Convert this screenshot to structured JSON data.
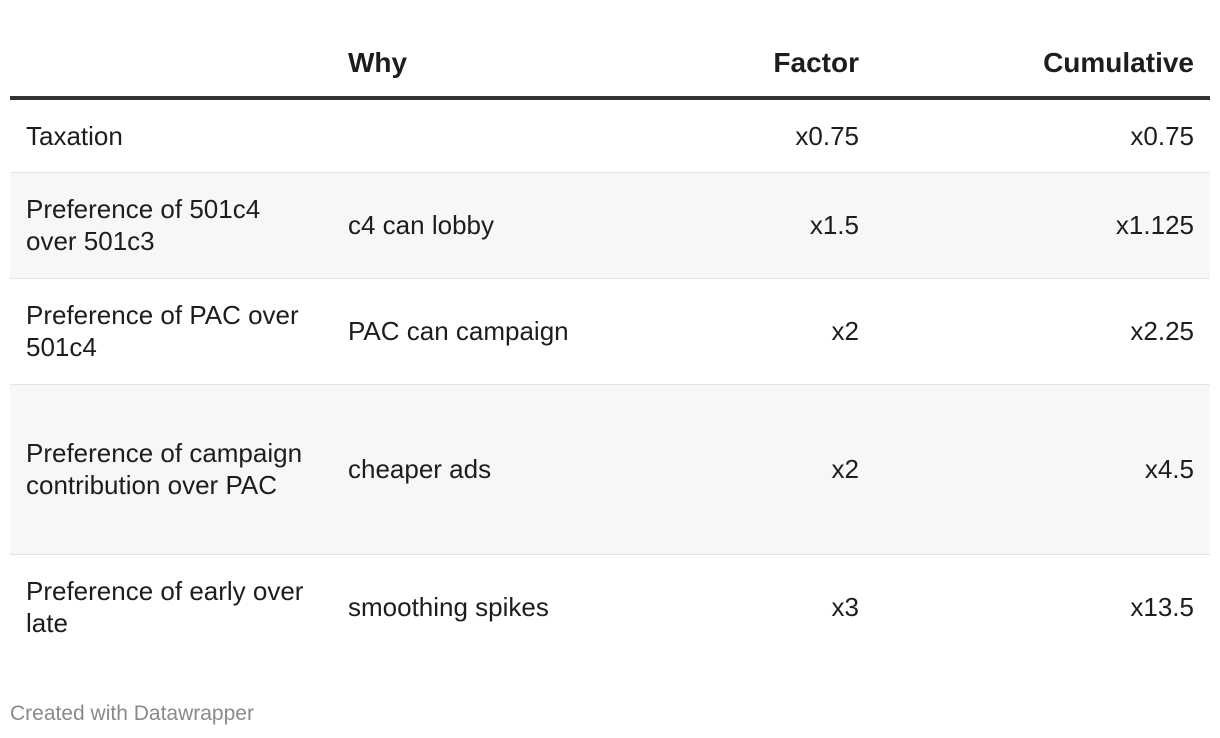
{
  "chart_data": {
    "type": "table",
    "columns": [
      "",
      "Why",
      "Factor",
      "Cumulative"
    ],
    "rows": [
      {
        "item": "Taxation",
        "why": "",
        "factor": "x0.75",
        "cumulative": "x0.75"
      },
      {
        "item": "Preference of 501c4 over 501c3",
        "why": "c4 can lobby",
        "factor": "x1.5",
        "cumulative": "x1.125"
      },
      {
        "item": "Preference of PAC over 501c4",
        "why": "PAC can campaign",
        "factor": "x2",
        "cumulative": "x2.25"
      },
      {
        "item": "Preference of campaign contribution over PAC",
        "why": "cheaper ads",
        "factor": "x2",
        "cumulative": "x4.5"
      },
      {
        "item": "Preference of early over late",
        "why": "smoothing spikes",
        "factor": "x3",
        "cumulative": "x13.5"
      }
    ]
  },
  "footer": {
    "credit": "Created with Datawrapper"
  },
  "colors": {
    "header_rule": "#333333",
    "row_divider": "#e3e3e3",
    "alt_row_background": "#f7f7f7",
    "credit_text": "#8a8a8a"
  }
}
